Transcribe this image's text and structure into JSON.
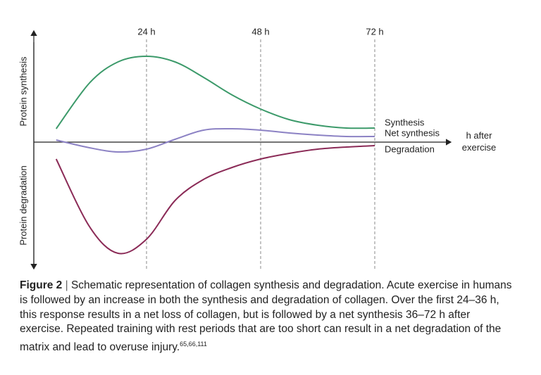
{
  "chart_data": {
    "type": "line",
    "x_label": "h after exercise",
    "y_label_top": "Protein synthesis",
    "y_label_bottom": "Protein degradation",
    "x": [
      5,
      12,
      18,
      24,
      30,
      36,
      42,
      48,
      54,
      60,
      66,
      72
    ],
    "series": [
      {
        "name": "Synthesis",
        "color": "#3c9a6a",
        "values": [
          0.19,
          0.84,
          1.14,
          1.22,
          1.14,
          0.92,
          0.67,
          0.47,
          0.32,
          0.24,
          0.2,
          0.2
        ]
      },
      {
        "name": "Net synthesis",
        "color": "#8c82c4",
        "values": [
          0.03,
          -0.08,
          -0.14,
          -0.1,
          0.04,
          0.17,
          0.19,
          0.17,
          0.13,
          0.1,
          0.08,
          0.08
        ]
      },
      {
        "name": "Degradation",
        "color": "#8b2b57",
        "values": [
          -0.24,
          -1.2,
          -1.58,
          -1.38,
          -0.83,
          -0.53,
          -0.36,
          -0.24,
          -0.16,
          -0.1,
          -0.07,
          -0.05
        ]
      }
    ],
    "xlim": [
      0,
      88
    ],
    "ylim": [
      -1.8,
      1.6
    ],
    "xticks": [
      {
        "value": 24,
        "label": "24 h"
      },
      {
        "value": 48,
        "label": "48 h"
      },
      {
        "value": 72,
        "label": "72 h"
      }
    ],
    "grid": true,
    "caption": {
      "label": "Figure 2",
      "separator": "|",
      "text": "Schematic representation of collagen synthesis and degradation. Acute exercise in humans is followed by an increase in both the synthesis and degradation of collagen. Over the first 24–36 h, this response results in a net loss of collagen, but is followed by a net synthesis 36–72 h after exercise. Repeated training with rest periods that are too short can result in a net degradation of the matrix and lead to overuse injury.",
      "refs": "65,66,111"
    }
  }
}
